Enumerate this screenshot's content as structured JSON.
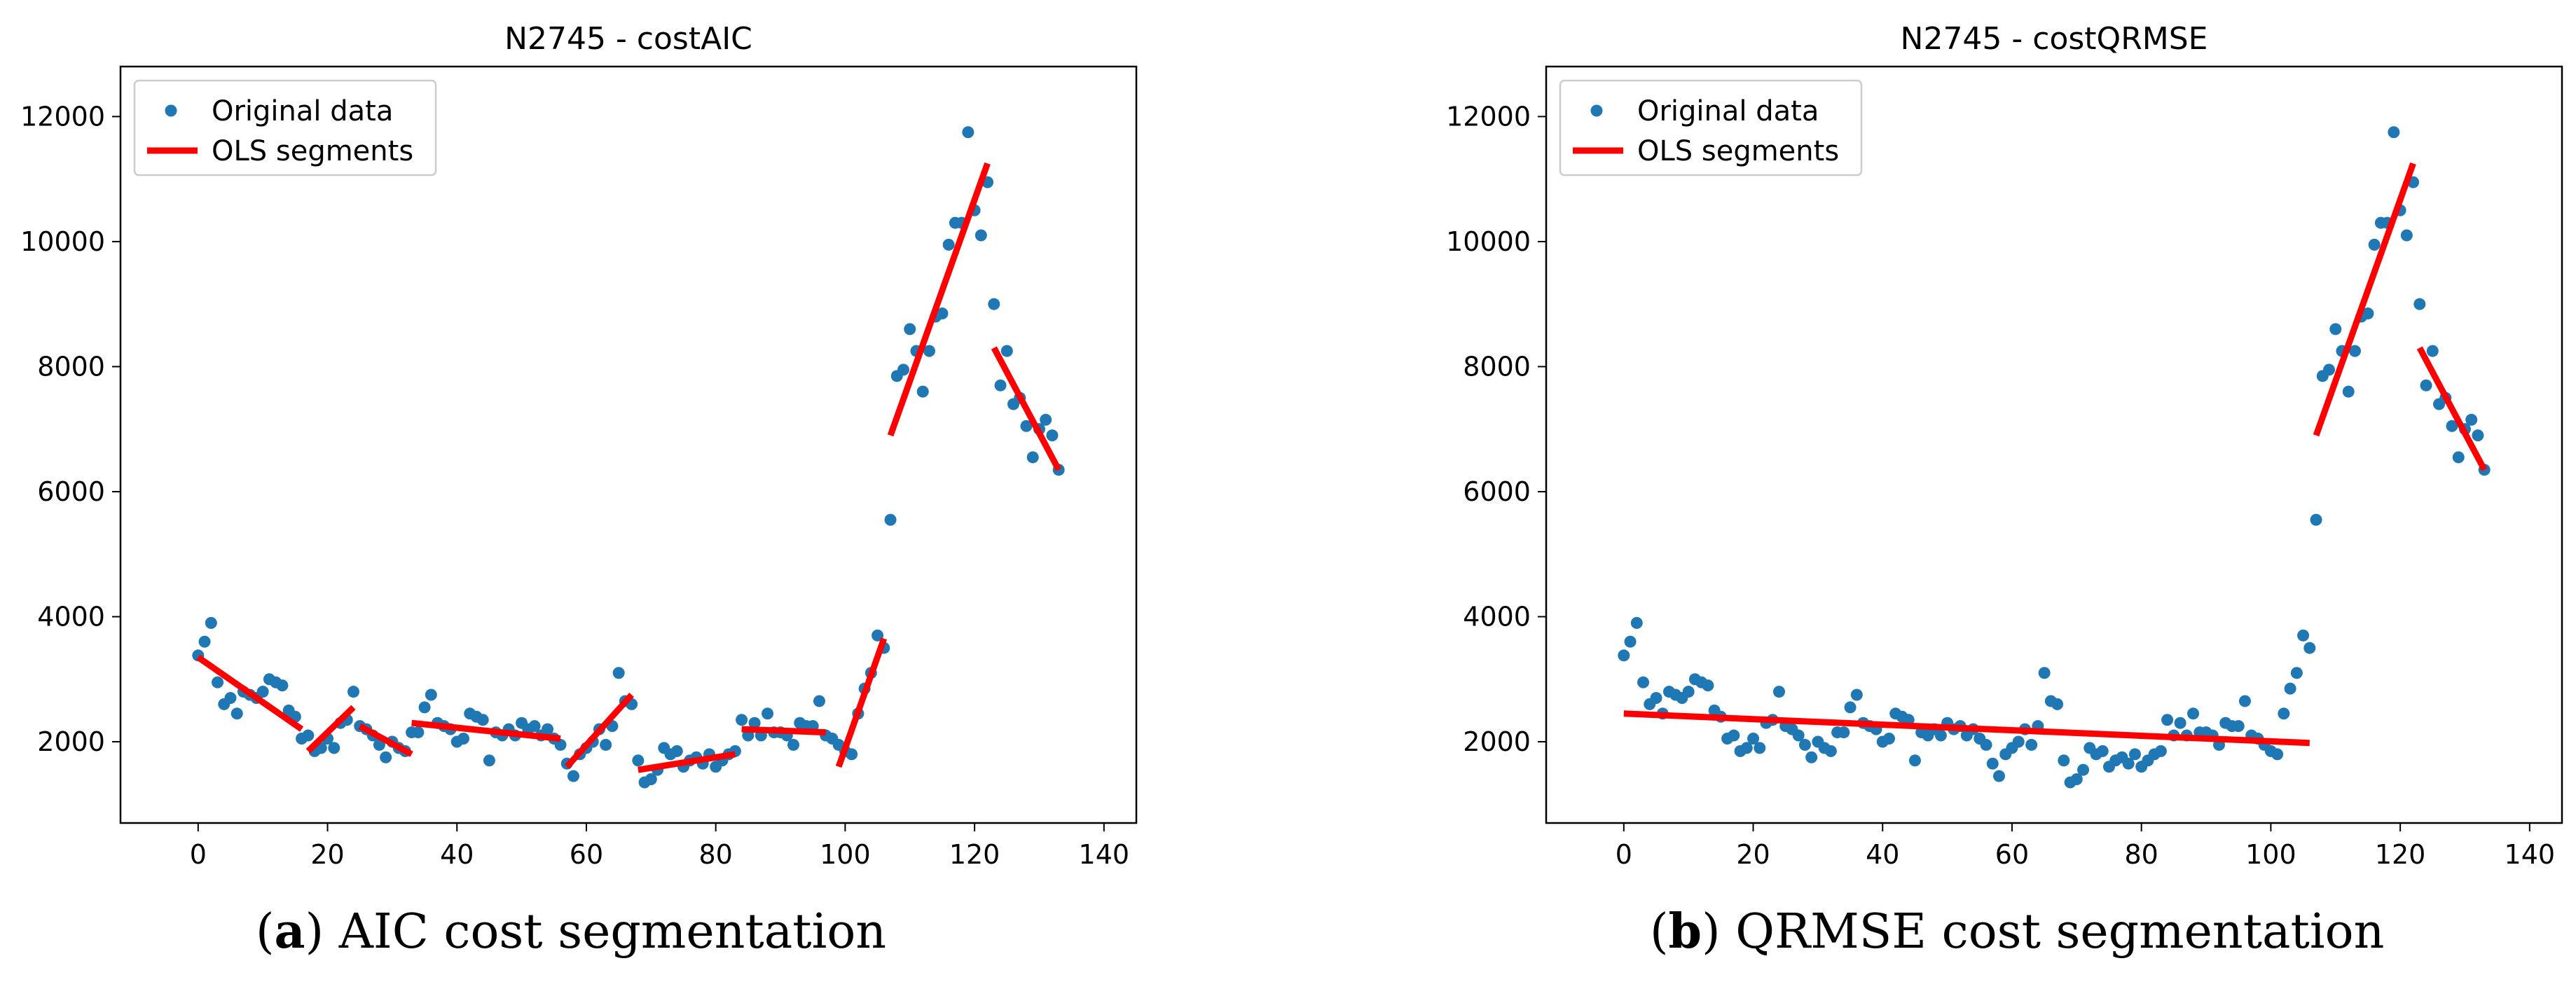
{
  "captions": [
    {
      "letter": "a",
      "text": "AIC cost segmentation"
    },
    {
      "letter": "b",
      "text": "QRMSE cost segmentation"
    }
  ],
  "colors": {
    "points": "#1f77b4",
    "segments": "#ff0000"
  },
  "chart_data": [
    {
      "type": "scatter",
      "title": "N2745 - costAIC",
      "xlabel": "",
      "ylabel": "",
      "xlim": [
        -12,
        145
      ],
      "ylim": [
        700,
        12800
      ],
      "xticks": [
        0,
        20,
        40,
        60,
        80,
        100,
        120,
        140
      ],
      "yticks": [
        2000,
        4000,
        6000,
        8000,
        10000,
        12000
      ],
      "grid": false,
      "legend": {
        "position": "top-left",
        "entries": [
          "Original data",
          "OLS segments"
        ]
      },
      "series": [
        {
          "name": "Original data",
          "kind": "points",
          "points": [
            [
              0,
              3380
            ],
            [
              1,
              3600
            ],
            [
              2,
              3900
            ],
            [
              3,
              2950
            ],
            [
              4,
              2600
            ],
            [
              5,
              2700
            ],
            [
              6,
              2450
            ],
            [
              7,
              2800
            ],
            [
              8,
              2750
            ],
            [
              9,
              2700
            ],
            [
              10,
              2800
            ],
            [
              11,
              3000
            ],
            [
              12,
              2950
            ],
            [
              13,
              2900
            ],
            [
              14,
              2500
            ],
            [
              15,
              2400
            ],
            [
              16,
              2050
            ],
            [
              17,
              2100
            ],
            [
              18,
              1850
            ],
            [
              19,
              1900
            ],
            [
              20,
              2050
            ],
            [
              21,
              1900
            ],
            [
              22,
              2300
            ],
            [
              23,
              2350
            ],
            [
              24,
              2800
            ],
            [
              25,
              2250
            ],
            [
              26,
              2200
            ],
            [
              27,
              2100
            ],
            [
              28,
              1950
            ],
            [
              29,
              1750
            ],
            [
              30,
              2000
            ],
            [
              31,
              1900
            ],
            [
              32,
              1850
            ],
            [
              33,
              2150
            ],
            [
              34,
              2150
            ],
            [
              35,
              2550
            ],
            [
              36,
              2750
            ],
            [
              37,
              2300
            ],
            [
              38,
              2250
            ],
            [
              39,
              2200
            ],
            [
              40,
              2000
            ],
            [
              41,
              2050
            ],
            [
              42,
              2450
            ],
            [
              43,
              2400
            ],
            [
              44,
              2350
            ],
            [
              45,
              1700
            ],
            [
              46,
              2150
            ],
            [
              47,
              2100
            ],
            [
              48,
              2200
            ],
            [
              49,
              2100
            ],
            [
              50,
              2300
            ],
            [
              51,
              2200
            ],
            [
              52,
              2250
            ],
            [
              53,
              2100
            ],
            [
              54,
              2200
            ],
            [
              55,
              2050
            ],
            [
              56,
              1950
            ],
            [
              57,
              1650
            ],
            [
              58,
              1450
            ],
            [
              59,
              1800
            ],
            [
              60,
              1900
            ],
            [
              61,
              2000
            ],
            [
              62,
              2200
            ],
            [
              63,
              1950
            ],
            [
              64,
              2250
            ],
            [
              65,
              3100
            ],
            [
              66,
              2650
            ],
            [
              67,
              2600
            ],
            [
              68,
              1700
            ],
            [
              69,
              1350
            ],
            [
              70,
              1400
            ],
            [
              71,
              1550
            ],
            [
              72,
              1900
            ],
            [
              73,
              1800
            ],
            [
              74,
              1850
            ],
            [
              75,
              1600
            ],
            [
              76,
              1700
            ],
            [
              77,
              1750
            ],
            [
              78,
              1650
            ],
            [
              79,
              1800
            ],
            [
              80,
              1600
            ],
            [
              81,
              1700
            ],
            [
              82,
              1800
            ],
            [
              83,
              1850
            ],
            [
              84,
              2350
            ],
            [
              85,
              2100
            ],
            [
              86,
              2300
            ],
            [
              87,
              2100
            ],
            [
              88,
              2450
            ],
            [
              89,
              2150
            ],
            [
              90,
              2150
            ],
            [
              91,
              2100
            ],
            [
              92,
              1950
            ],
            [
              93,
              2300
            ],
            [
              94,
              2250
            ],
            [
              95,
              2250
            ],
            [
              96,
              2650
            ],
            [
              97,
              2100
            ],
            [
              98,
              2050
            ],
            [
              99,
              1950
            ],
            [
              100,
              1850
            ],
            [
              101,
              1800
            ],
            [
              102,
              2450
            ],
            [
              103,
              2850
            ],
            [
              104,
              3100
            ],
            [
              105,
              3700
            ],
            [
              106,
              3500
            ],
            [
              107,
              5550
            ],
            [
              108,
              7850
            ],
            [
              109,
              7950
            ],
            [
              110,
              8600
            ],
            [
              111,
              8250
            ],
            [
              112,
              7600
            ],
            [
              113,
              8250
            ],
            [
              114,
              8800
            ],
            [
              115,
              8850
            ],
            [
              116,
              9950
            ],
            [
              117,
              10300
            ],
            [
              118,
              10300
            ],
            [
              119,
              11750
            ],
            [
              120,
              10500
            ],
            [
              121,
              10100
            ],
            [
              122,
              10950
            ],
            [
              123,
              9000
            ],
            [
              124,
              7700
            ],
            [
              125,
              8250
            ],
            [
              126,
              7400
            ],
            [
              127,
              7500
            ],
            [
              128,
              7050
            ],
            [
              129,
              6550
            ],
            [
              130,
              7000
            ],
            [
              131,
              7150
            ],
            [
              132,
              6900
            ],
            [
              133,
              6350
            ]
          ]
        },
        {
          "name": "OLS segments",
          "kind": "segments",
          "segments": [
            [
              0,
              3350,
              16,
              2200
            ],
            [
              17,
              1850,
              24,
              2550
            ],
            [
              25,
              2250,
              33,
              1800
            ],
            [
              33,
              2300,
              56,
              2050
            ],
            [
              57,
              1600,
              67,
              2750
            ],
            [
              68,
              1550,
              83,
              1800
            ],
            [
              84,
              2200,
              97,
              2150
            ],
            [
              99,
              1600,
              106,
              3650
            ],
            [
              107,
              6900,
              122,
              11250
            ],
            [
              123,
              8300,
              133,
              6350
            ]
          ]
        }
      ]
    },
    {
      "type": "scatter",
      "title": "N2745 - costQRMSE",
      "xlabel": "",
      "ylabel": "",
      "xlim": [
        -12,
        145
      ],
      "ylim": [
        700,
        12800
      ],
      "xticks": [
        0,
        20,
        40,
        60,
        80,
        100,
        120,
        140
      ],
      "yticks": [
        2000,
        4000,
        6000,
        8000,
        10000,
        12000
      ],
      "grid": false,
      "legend": {
        "position": "top-left",
        "entries": [
          "Original data",
          "OLS segments"
        ]
      },
      "series": [
        {
          "name": "Original data",
          "kind": "points",
          "same_as_chart": 0
        },
        {
          "name": "OLS segments",
          "kind": "segments",
          "segments": [
            [
              0,
              2450,
              106,
              1980
            ],
            [
              107,
              6900,
              122,
              11250
            ],
            [
              123,
              8300,
              133,
              6350
            ]
          ]
        }
      ]
    }
  ]
}
